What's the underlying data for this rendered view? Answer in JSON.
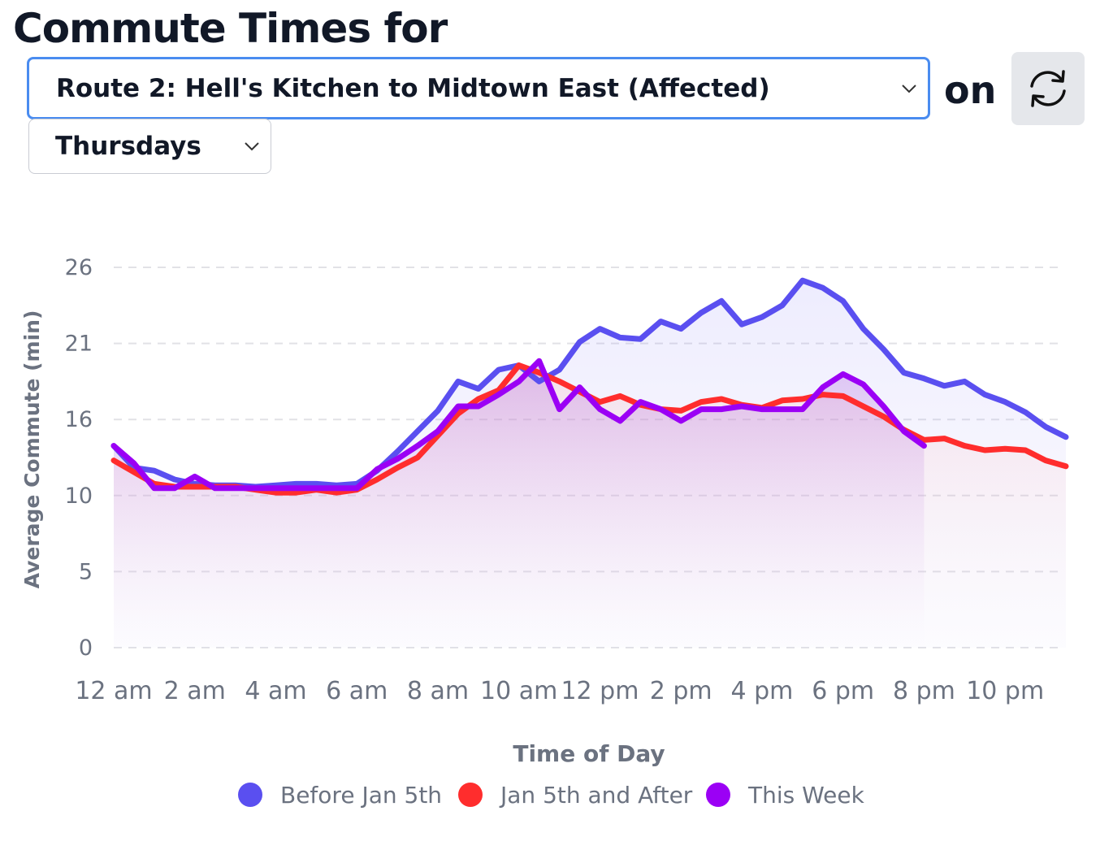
{
  "title": "Commute Times for",
  "route_select": "Route 2: Hell's Kitchen to Midtown East (Affected)",
  "connector": "on",
  "day_select": "Thursdays",
  "chart_data": {
    "type": "line",
    "ylabel": "Average Commute (min)",
    "xlabel": "Time of Day",
    "categories": [
      "12 am",
      null,
      null,
      null,
      "2 am",
      null,
      null,
      null,
      "4 am",
      null,
      null,
      null,
      "6 am",
      null,
      null,
      null,
      "8 am",
      null,
      null,
      null,
      "10 am",
      null,
      null,
      null,
      "12 pm",
      null,
      null,
      null,
      "2 pm",
      null,
      null,
      null,
      "4 pm",
      null,
      null,
      null,
      "6 pm",
      null,
      null,
      null,
      "8 pm",
      null,
      null,
      null,
      "10 pm",
      null,
      null,
      null
    ],
    "ylim": [
      0,
      26
    ],
    "yticks": [
      0,
      {
        "value": 5.2,
        "label": "5"
      },
      {
        "value": 10.4,
        "label": "10"
      },
      {
        "value": 15.6,
        "label": "16"
      },
      {
        "value": 20.8,
        "label": "21"
      },
      26
    ],
    "grid": true,
    "series": [
      {
        "name": "Before Jan 5th",
        "color": "#5a4ff0",
        "values": [
          13.8,
          12.3,
          12.1,
          11.5,
          11.2,
          11.1,
          11.1,
          11.0,
          11.1,
          11.2,
          11.2,
          11.1,
          11.2,
          12.1,
          13.4,
          14.8,
          16.2,
          18.2,
          17.7,
          19.0,
          19.3,
          18.2,
          19.0,
          20.9,
          21.8,
          21.2,
          21.1,
          22.3,
          21.8,
          22.9,
          23.7,
          22.1,
          22.6,
          23.4,
          25.1,
          24.6,
          23.7,
          21.8,
          20.4,
          18.8,
          18.4,
          17.9,
          18.2,
          17.3,
          16.8,
          16.1,
          15.1,
          14.4
        ]
      },
      {
        "name": "Jan 5th and After",
        "color": "#ff2d2d",
        "values": [
          12.8,
          12.0,
          11.2,
          11.0,
          11.0,
          11.0,
          11.0,
          10.8,
          10.6,
          10.6,
          10.8,
          10.6,
          10.8,
          11.5,
          12.3,
          13.0,
          14.5,
          16.0,
          17.0,
          17.6,
          19.3,
          18.8,
          18.2,
          17.5,
          16.8,
          17.2,
          16.6,
          16.3,
          16.2,
          16.8,
          17.0,
          16.6,
          16.4,
          16.9,
          17.0,
          17.3,
          17.2,
          16.5,
          15.8,
          14.9,
          14.2,
          14.3,
          13.8,
          13.5,
          13.6,
          13.5,
          12.8,
          12.4
        ]
      },
      {
        "name": "This Week",
        "color": "#9b00f5",
        "values": [
          13.8,
          12.6,
          10.9,
          10.9,
          11.7,
          10.9,
          10.9,
          10.9,
          10.9,
          10.9,
          10.9,
          10.9,
          10.9,
          12.2,
          12.9,
          13.8,
          14.8,
          16.5,
          16.5,
          17.3,
          18.2,
          19.6,
          16.3,
          17.8,
          16.3,
          15.5,
          16.8,
          16.3,
          15.5,
          16.3,
          16.3,
          16.5,
          16.3,
          16.3,
          16.3,
          17.8,
          18.7,
          18.0,
          16.5,
          14.8,
          13.8,
          null,
          null,
          null,
          null,
          null,
          null,
          null
        ]
      }
    ]
  }
}
